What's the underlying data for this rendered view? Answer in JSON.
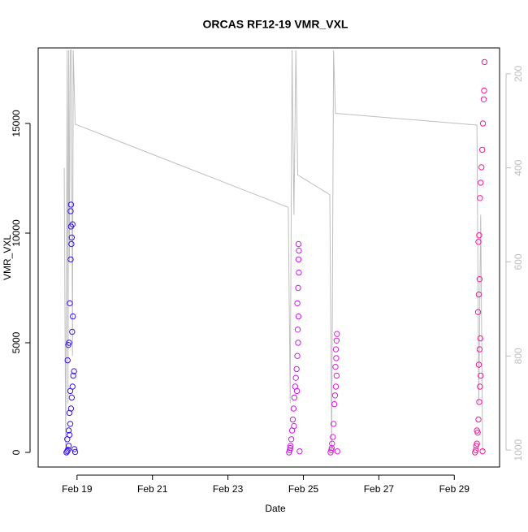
{
  "chart_data": {
    "type": "scatter",
    "title": "ORCAS RF12-19 VMR_VXL",
    "x_label": "Date",
    "y_label": "VMR_VXL",
    "xlim": [
      17.97,
      30.2
    ],
    "xticks": [
      {
        "value": 19,
        "label": "Feb 19"
      },
      {
        "value": 21,
        "label": "Feb 21"
      },
      {
        "value": 23,
        "label": "Feb 23"
      },
      {
        "value": 25,
        "label": "Feb 25"
      },
      {
        "value": 27,
        "label": "Feb 27"
      },
      {
        "value": 29,
        "label": "Feb 29"
      }
    ],
    "ylim": [
      -667,
      18444
    ],
    "yticks": [
      0,
      5000,
      10000,
      15000
    ],
    "y2lim": [
      1036,
      145
    ],
    "y2ticks": [
      200,
      400,
      600,
      800,
      1000
    ],
    "series": [
      {
        "color": "#3a14f5",
        "x": [
          18.72,
          18.74,
          18.76,
          18.78,
          18.8,
          18.82,
          18.84,
          18.86,
          18.88,
          18.9,
          18.75,
          18.77,
          18.79,
          18.87,
          18.89,
          18.81,
          18.83,
          18.85,
          18.86,
          18.84,
          18.88,
          18.83,
          18.84,
          18.93,
          18.74,
          18.78,
          18.8,
          18.82,
          18.92,
          18.95
        ],
        "values": [
          0,
          50,
          120,
          300,
          800,
          1300,
          2000,
          2500,
          3000,
          3500,
          4200,
          4900,
          5000,
          5500,
          6200,
          6800,
          8800,
          9500,
          9800,
          10300,
          10400,
          11000,
          11300,
          150,
          600,
          1000,
          1800,
          2800,
          3700,
          20
        ]
      },
      {
        "color": "#c81ee6",
        "x": [
          24.62,
          24.64,
          24.66,
          24.68,
          24.7,
          24.72,
          24.74,
          24.76,
          24.78,
          24.8,
          24.82,
          24.84,
          24.86,
          24.85,
          24.87,
          24.84,
          24.86,
          24.88,
          24.87,
          24.88,
          24.87,
          24.65,
          24.75,
          24.83,
          24.9
        ],
        "values": [
          0,
          100,
          300,
          600,
          1000,
          1500,
          2000,
          2500,
          3000,
          3400,
          3800,
          4400,
          5000,
          5600,
          6200,
          6800,
          7500,
          8200,
          8800,
          9200,
          9500,
          200,
          1200,
          2800,
          50
        ]
      },
      {
        "color": "#e11adf",
        "x": [
          25.72,
          25.74,
          25.76,
          25.78,
          25.8,
          25.82,
          25.84,
          25.86,
          25.88,
          25.85,
          25.87,
          25.86,
          25.88,
          25.89,
          25.75,
          25.9
        ],
        "values": [
          0,
          100,
          400,
          700,
          1300,
          2200,
          2600,
          3000,
          3500,
          3900,
          4300,
          4700,
          5100,
          5400,
          200,
          50
        ]
      },
      {
        "color": "#ff14a0",
        "x": [
          29.55,
          29.57,
          29.6,
          29.62,
          29.64,
          29.66,
          29.68,
          29.7,
          29.65,
          29.67,
          29.69,
          29.63,
          29.65,
          29.67,
          29.64,
          29.66,
          29.68,
          29.7,
          29.72,
          29.74,
          29.76,
          29.78,
          29.79,
          29.8,
          29.58,
          29.75,
          29.6
        ],
        "values": [
          0,
          100,
          400,
          900,
          1500,
          2300,
          3000,
          3500,
          4000,
          4700,
          5200,
          6400,
          7200,
          7900,
          9600,
          9900,
          11600,
          12300,
          13000,
          13800,
          15000,
          16100,
          16500,
          17800,
          300,
          50,
          1000
        ]
      },
      {
        "type": "line",
        "axis": "y2",
        "color": "#bfbfbf",
        "x": [
          18.66,
          18.7,
          18.72,
          18.74,
          18.76,
          18.78,
          18.8,
          18.82,
          18.85,
          18.88,
          18.9,
          18.95,
          24.6,
          24.65,
          24.7,
          24.75,
          24.8,
          24.85,
          25.7,
          25.75,
          25.8,
          25.85,
          29.6,
          29.65,
          29.7,
          29.75,
          29.8
        ],
        "values": [
          400,
          1000,
          600,
          150,
          900,
          150,
          600,
          150,
          150,
          800,
          150,
          307,
          484,
          900,
          150,
          500,
          150,
          415,
          457,
          1000,
          150,
          284,
          309,
          900,
          500,
          1000,
          1000
        ]
      }
    ]
  }
}
